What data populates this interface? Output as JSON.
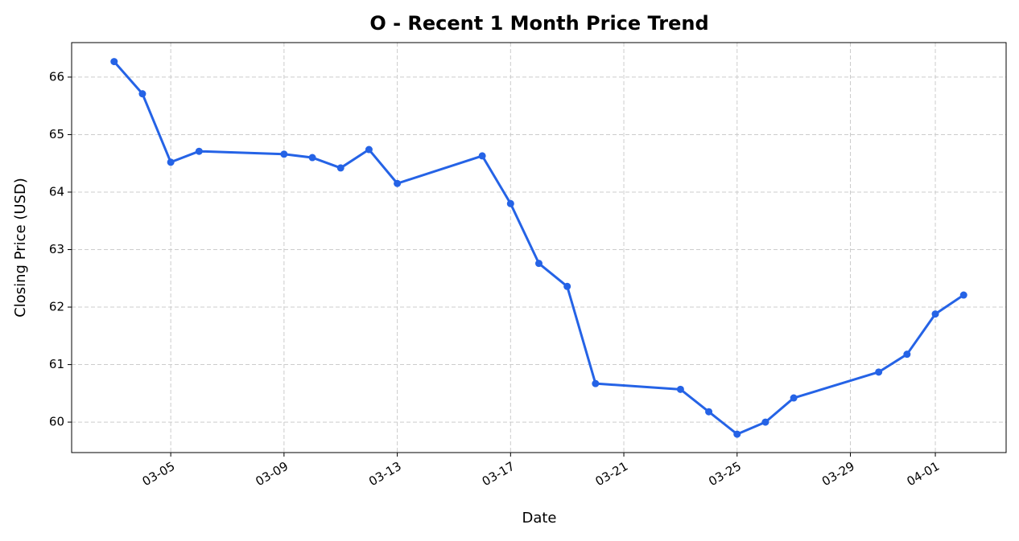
{
  "chart_data": {
    "type": "line",
    "title": "O - Recent 1 Month Price Trend",
    "x_label": "Date",
    "y_label": "Closing Price (USD)",
    "x": [
      "03-03",
      "03-04",
      "03-05",
      "03-06",
      "03-09",
      "03-10",
      "03-11",
      "03-12",
      "03-13",
      "03-16",
      "03-17",
      "03-18",
      "03-19",
      "03-20",
      "03-23",
      "03-24",
      "03-25",
      "03-26",
      "03-27",
      "03-30",
      "03-31",
      "04-01",
      "04-02"
    ],
    "series": [
      {
        "name": "O",
        "color": "#2563e6",
        "values": [
          66.27,
          65.71,
          64.52,
          64.71,
          64.66,
          64.6,
          64.42,
          64.74,
          64.15,
          64.63,
          63.8,
          62.76,
          62.36,
          60.67,
          60.57,
          60.18,
          59.79,
          60.0,
          60.42,
          60.87,
          61.18,
          61.88,
          62.21
        ]
      }
    ],
    "xticks": [
      "03-05",
      "03-09",
      "03-13",
      "03-17",
      "03-21",
      "03-25",
      "03-29",
      "04-01"
    ],
    "ylim": [
      59.47,
      66.6
    ],
    "yticks": [
      60,
      61,
      62,
      63,
      64,
      65,
      66
    ],
    "grid": true
  }
}
